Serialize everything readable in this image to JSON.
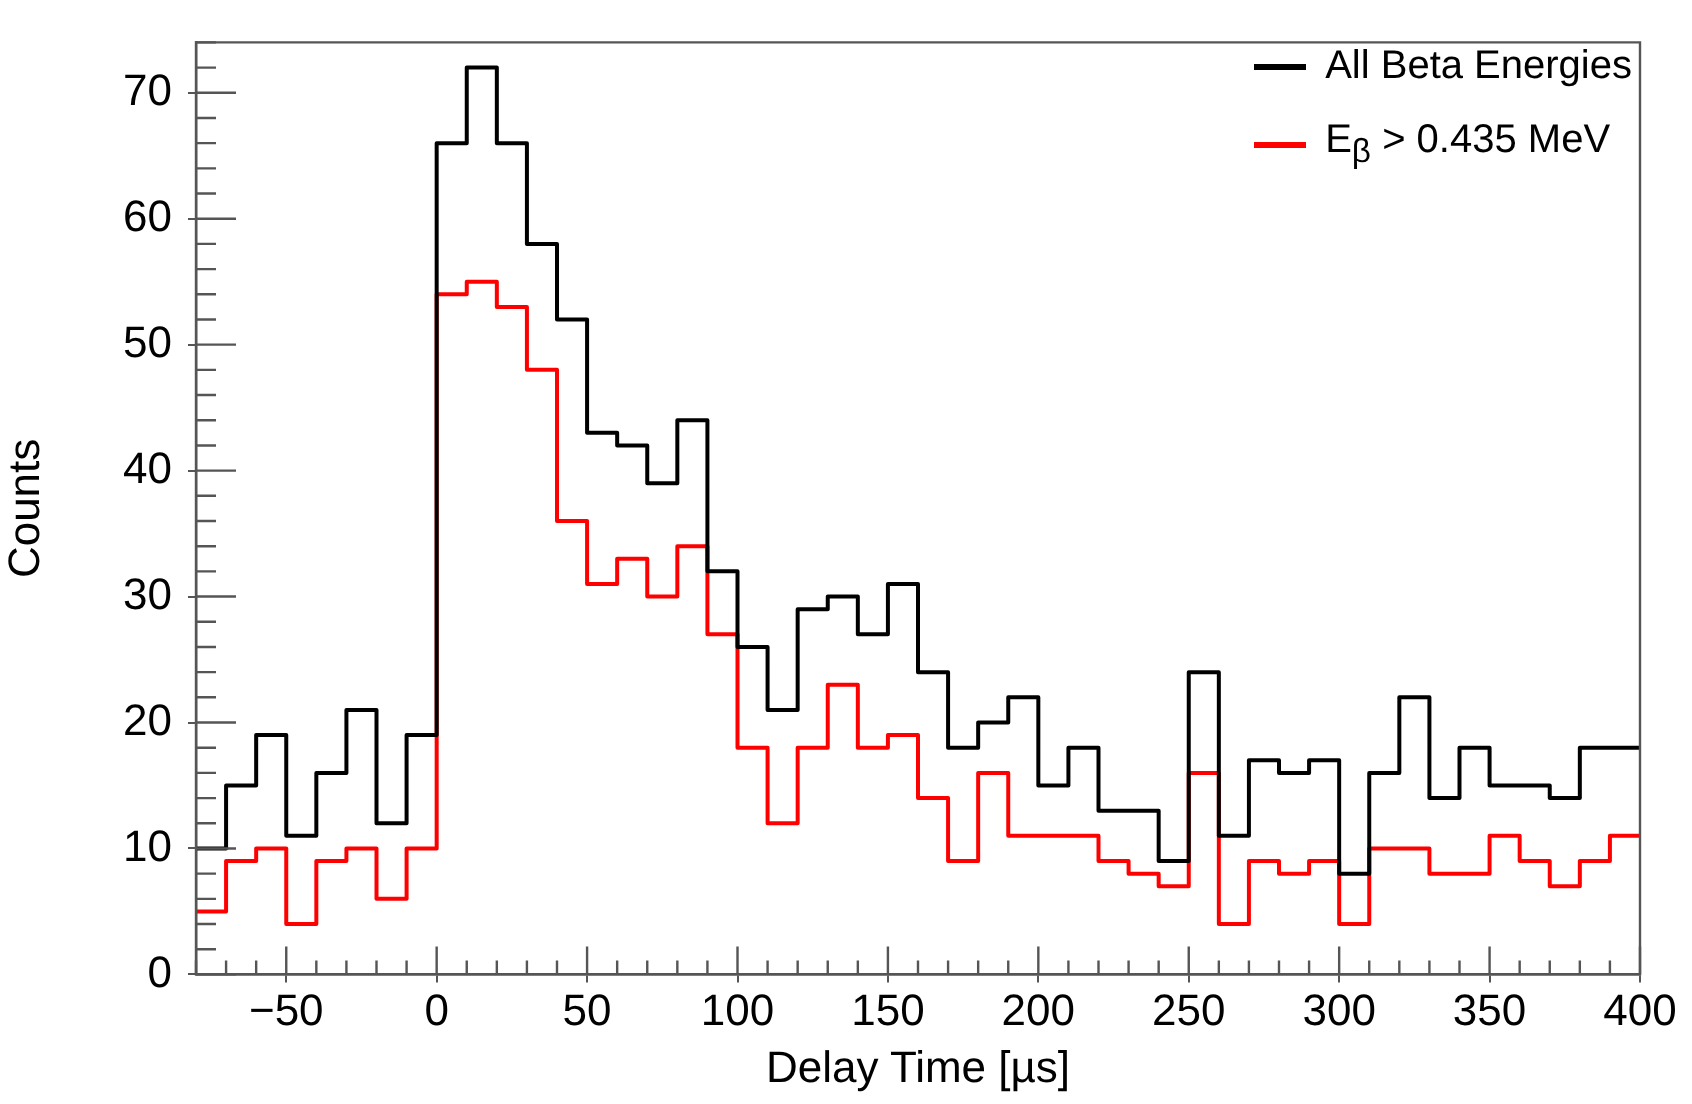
{
  "chart_data": {
    "type": "histogram",
    "xlabel": "Delay Time [µs]",
    "ylabel": "Counts",
    "bins": [
      -80,
      -70,
      -60,
      -50,
      -40,
      -30,
      -20,
      -10,
      0,
      10,
      20,
      30,
      40,
      50,
      60,
      70,
      80,
      90,
      100,
      110,
      120,
      130,
      140,
      150,
      160,
      170,
      180,
      190,
      200,
      210,
      220,
      230,
      240,
      250,
      260,
      270,
      280,
      290,
      300,
      310,
      320,
      330,
      340,
      350,
      360,
      370,
      380,
      390,
      400
    ],
    "series": [
      {
        "name": "All Beta Energies",
        "color": "#000000",
        "values": [
          10,
          15,
          19,
          11,
          16,
          21,
          12,
          19,
          66,
          72,
          66,
          58,
          52,
          43,
          42,
          39,
          44,
          32,
          26,
          21,
          29,
          30,
          27,
          31,
          24,
          18,
          20,
          22,
          15,
          18,
          13,
          13,
          9,
          24,
          11,
          17,
          16,
          17,
          8,
          16,
          22,
          14,
          18,
          15,
          15,
          14,
          18,
          18
        ]
      },
      {
        "name": "E$_{β}$ > 0.435 MeV",
        "color": "#ff0000",
        "values": [
          5,
          9,
          10,
          4,
          9,
          10,
          6,
          10,
          54,
          55,
          53,
          48,
          36,
          31,
          33,
          30,
          34,
          27,
          18,
          12,
          18,
          23,
          18,
          19,
          14,
          9,
          16,
          11,
          11,
          11,
          9,
          8,
          7,
          16,
          4,
          9,
          8,
          9,
          4,
          10,
          10,
          8,
          8,
          11,
          9,
          7,
          9,
          11
        ]
      }
    ],
    "xlim": [
      -80,
      400
    ],
    "xticks": [
      -50,
      0,
      50,
      100,
      150,
      200,
      250,
      300,
      350,
      400
    ],
    "ylim": [
      0,
      74
    ],
    "yticks": [
      0,
      10,
      20,
      30,
      40,
      50,
      60,
      70
    ],
    "legend": "top right",
    "grid": false
  }
}
